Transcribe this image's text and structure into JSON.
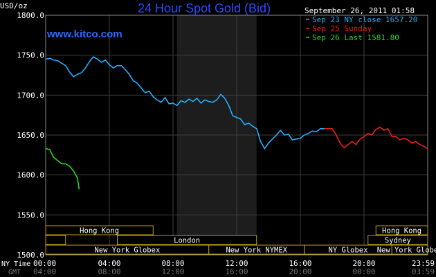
{
  "chart_data": {
    "type": "line",
    "title": "24 Hour Spot Gold (Bid)",
    "website": "www.kitco.com",
    "timestamp": "September 26, 2011 01:58",
    "ylabel": "USD/oz",
    "ylim": [
      1500,
      1800
    ],
    "yticks": [
      "1500.0",
      "1550.0",
      "1600.0",
      "1650.0",
      "1700.0",
      "1750.0",
      "1800.0"
    ],
    "xlim": [
      0,
      24
    ],
    "x_axis_ny_label": "NY Time",
    "x_axis_gmt_label": "GMT",
    "xticks_ny": [
      "00:00",
      "04:00",
      "08:00",
      "12:00",
      "16:00",
      "20:00",
      "23:59"
    ],
    "xticks_gmt": [
      "04:00",
      "08:00",
      "12:00",
      "16:00",
      "20:00",
      "00:00",
      "03:59"
    ],
    "grid": true,
    "legend_position": "top-right",
    "colors": {
      "background": "#000000",
      "grid": "#404040",
      "title": "#2a4bff",
      "plot_border": "#8a8a8a",
      "market_box": "#c0a000",
      "shade": "#1d1d1d"
    },
    "series": [
      {
        "name": "Sep 23 NY close 1657.20",
        "color": "#1fb0ff",
        "x": [
          0,
          0.25,
          0.5,
          0.75,
          1.0,
          1.25,
          1.5,
          1.75,
          2.0,
          2.25,
          2.5,
          2.75,
          3.0,
          3.25,
          3.5,
          3.75,
          4.0,
          4.25,
          4.5,
          4.75,
          5.0,
          5.25,
          5.5,
          5.75,
          6.0,
          6.25,
          6.5,
          6.75,
          7.0,
          7.25,
          7.5,
          7.75,
          8.0,
          8.25,
          8.5,
          8.75,
          9.0,
          9.25,
          9.5,
          9.75,
          10.0,
          10.25,
          10.5,
          10.75,
          11.0,
          11.25,
          11.5,
          11.75,
          12.0,
          12.25,
          12.5,
          12.75,
          13.0,
          13.25,
          13.5,
          13.75,
          14.0,
          14.25,
          14.5,
          14.75,
          15.0,
          15.25,
          15.5,
          15.75,
          16.0,
          16.25,
          16.5,
          16.75,
          17.0,
          17.25,
          17.5
        ],
        "y": [
          1745,
          1746,
          1744,
          1743,
          1740,
          1737,
          1729,
          1723,
          1726,
          1728,
          1734,
          1742,
          1748,
          1745,
          1741,
          1744,
          1738,
          1734,
          1737,
          1737,
          1732,
          1726,
          1718,
          1715,
          1709,
          1703,
          1705,
          1698,
          1694,
          1691,
          1697,
          1689,
          1690,
          1687,
          1693,
          1691,
          1695,
          1692,
          1696,
          1690,
          1694,
          1692,
          1691,
          1694,
          1701,
          1696,
          1687,
          1674,
          1672,
          1670,
          1663,
          1665,
          1661,
          1658,
          1642,
          1633,
          1640,
          1645,
          1650,
          1656,
          1650,
          1651,
          1644,
          1645,
          1646,
          1650,
          1652,
          1655,
          1654,
          1658,
          1658
        ]
      },
      {
        "name": "Sep 25 Sunday",
        "color": "#ee1c1c",
        "x": [
          17.5,
          18.0,
          18.25,
          18.5,
          18.75,
          19.0,
          19.25,
          19.5,
          19.75,
          20.0,
          20.25,
          20.5,
          20.75,
          21.0,
          21.25,
          21.5,
          21.75,
          22.0,
          22.25,
          22.5,
          22.75,
          23.0,
          23.25,
          23.5,
          23.75,
          24.0
        ],
        "y": [
          1658,
          1658,
          1650,
          1640,
          1634,
          1638,
          1642,
          1638,
          1645,
          1648,
          1652,
          1650,
          1657,
          1660,
          1656,
          1658,
          1648,
          1648,
          1644,
          1646,
          1644,
          1640,
          1642,
          1638,
          1636,
          1633
        ]
      },
      {
        "name": "Sep 26 Last 1581.80",
        "color": "#22dd22",
        "x": [
          0,
          0.25,
          0.5,
          0.75,
          1.0,
          1.25,
          1.5,
          1.75,
          2.0,
          2.1
        ],
        "y": [
          1633,
          1632,
          1622,
          1618,
          1614,
          1614,
          1611,
          1605,
          1596,
          1582
        ]
      }
    ]
  },
  "markets": {
    "row1": [
      {
        "label": "Hong Kong",
        "start": 0,
        "end": 6.75
      },
      {
        "label": "Hong Kong",
        "start": 20.75,
        "end": 24
      }
    ],
    "row2": [
      {
        "label": "",
        "start": 0,
        "end": 1.25
      },
      {
        "label": "London",
        "start": 4.5,
        "end": 13.25
      },
      {
        "label": "Sydney",
        "start": 20.25,
        "end": 24
      }
    ],
    "row3": [
      {
        "label": "New York Globex",
        "start": 0,
        "end": 10.25
      },
      {
        "label": "New York NYMEX",
        "start": 10.25,
        "end": 16.25
      },
      {
        "label": "NY Globex",
        "start": 16.25,
        "end": 21.75
      },
      {
        "label": "New York Globex",
        "start": 21.75,
        "end": 24
      }
    ]
  }
}
